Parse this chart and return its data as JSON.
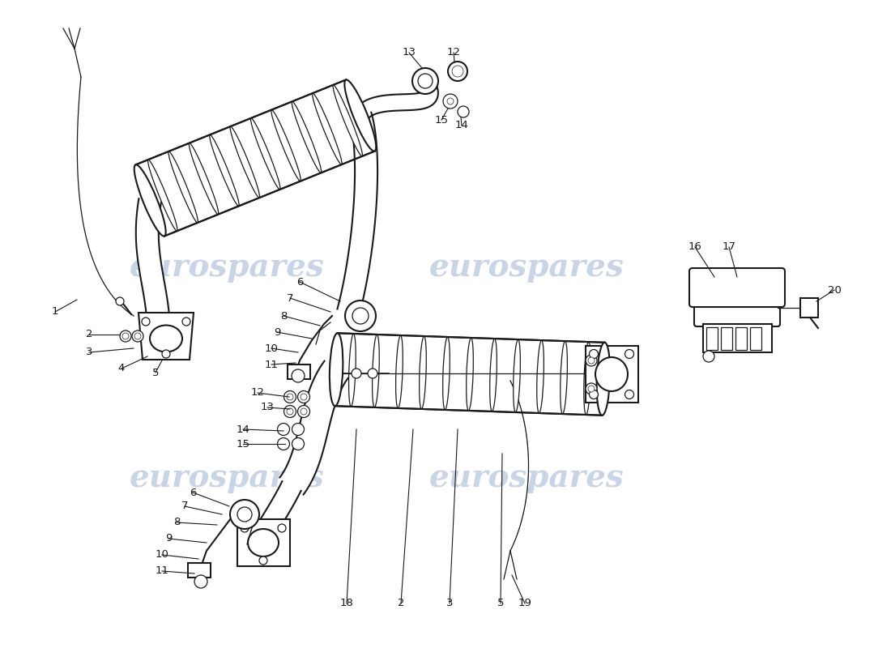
{
  "bg_color": "#ffffff",
  "line_color": "#1a1a1a",
  "watermark_color": "#c8d4e8",
  "watermark_text": "eurospares",
  "figsize": [
    11.0,
    8.0
  ],
  "dpi": 100
}
